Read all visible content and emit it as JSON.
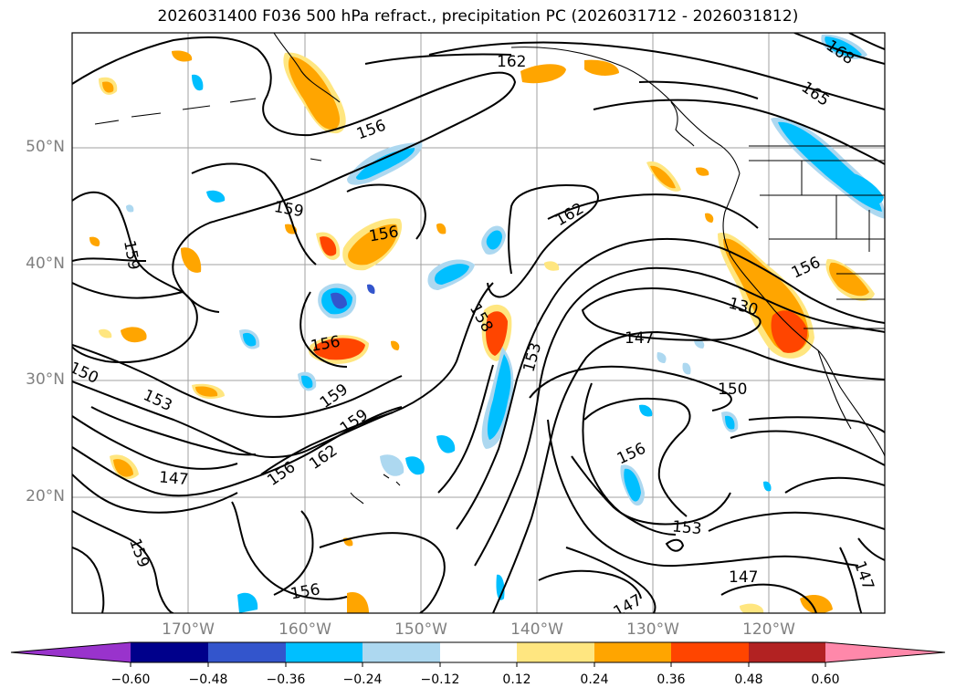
{
  "title": "2026031400 F036 500 hPa refract., precipitation PC (2026031712 - 2026031812)",
  "lat_labels": [
    "50°N",
    "40°N",
    "30°N",
    "20°N"
  ],
  "lon_labels": [
    "170°W",
    "160°W",
    "150°W",
    "140°W",
    "130°W",
    "120°W"
  ],
  "colorbar": {
    "ticks": [
      "−0.60",
      "−0.48",
      "−0.36",
      "−0.24",
      "−0.12",
      "0.12",
      "0.24",
      "0.36",
      "0.48",
      "0.60"
    ],
    "colors": [
      "#9933cc",
      "#00008b",
      "#3355cc",
      "#00bfff",
      "#add8f0",
      "#ffffff",
      "#ffe680",
      "#ffa500",
      "#ff4500",
      "#b22222",
      "#ff88aa"
    ]
  },
  "contour_labels": [
    "162",
    "168",
    "165",
    "156",
    "159",
    "159",
    "156",
    "162",
    "158",
    "153",
    "156",
    "156",
    "150",
    "153",
    "159",
    "159",
    "162",
    "156",
    "147",
    "147",
    "150",
    "130",
    "156",
    "153",
    "159",
    "156",
    "147",
    "147",
    "147"
  ],
  "map_colors": {
    "contour": "#000000",
    "grid": "#a0a0a0",
    "coast": "#000000"
  }
}
